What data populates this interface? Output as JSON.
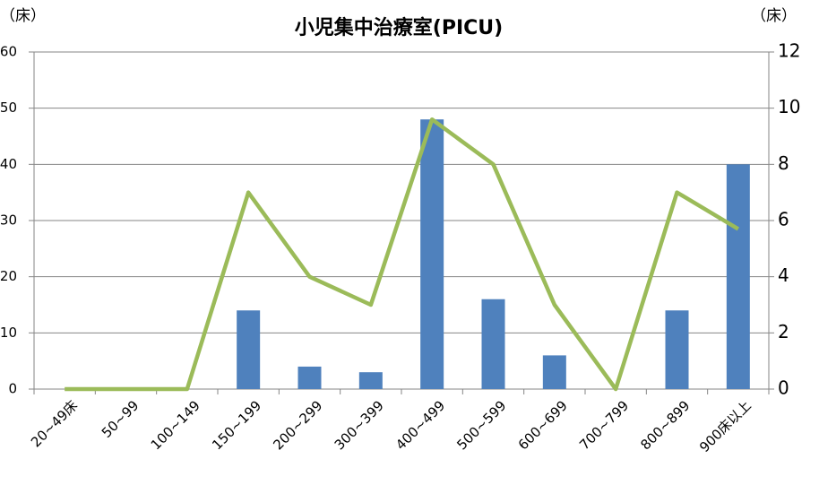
{
  "chart_data": {
    "type": "bar",
    "title": "小児集中治療室(PICU)",
    "y_label": "（床）",
    "y2_label": "（床）",
    "categories": [
      "20~49床",
      "50~99",
      "100~149",
      "150~199",
      "200~299",
      "300~399",
      "400~499",
      "500~599",
      "600~699",
      "700~799",
      "800~899",
      "900床以上"
    ],
    "series": [
      {
        "type": "bar",
        "color": "#4f81bd",
        "values": [
          0,
          0,
          0,
          14,
          4,
          3,
          48,
          16,
          6,
          0,
          14,
          40
        ]
      },
      {
        "type": "line",
        "axis": "y2",
        "color": "#9bbb59",
        "values": [
          0,
          0,
          0,
          7,
          4,
          3,
          9.6,
          8,
          3,
          0,
          7,
          5.7
        ]
      }
    ],
    "ylim": [
      0,
      60
    ],
    "yticks": [
      0,
      10,
      20,
      30,
      40,
      50,
      60
    ],
    "y2lim": [
      0,
      12
    ],
    "y2ticks": [
      0,
      2,
      4,
      6,
      8,
      10,
      12
    ],
    "grid": true
  }
}
